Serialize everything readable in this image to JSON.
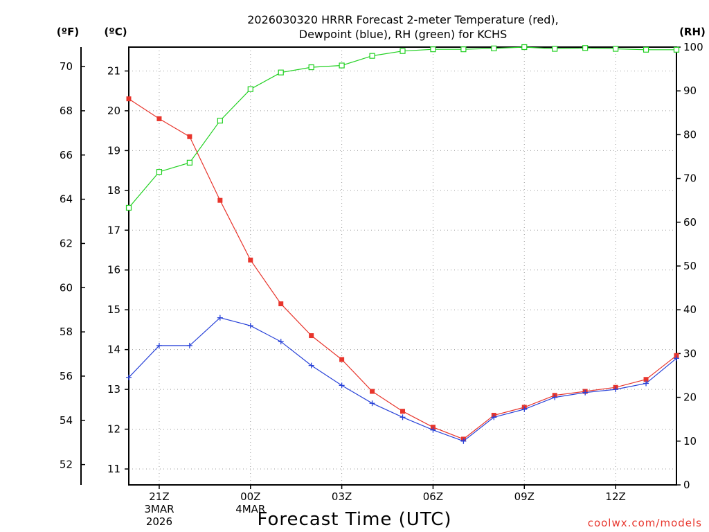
{
  "chart_data": {
    "type": "line",
    "title_line1": "2026030320 HRRR Forecast 2-meter Temperature (red),",
    "title_line2": "Dewpoint (blue), RH (green) for KCHS",
    "xlabel": "Forecast Time (UTC)",
    "credit": "coolwx.com/models",
    "unit_labels": {
      "fahrenheit": "(ºF)",
      "celsius": "(ºC)",
      "rh": "(RH)"
    },
    "x": [
      20,
      21,
      22,
      23,
      24,
      25,
      26,
      27,
      28,
      29,
      30,
      31,
      32,
      33,
      34,
      35,
      36,
      37,
      38
    ],
    "x_range": [
      20,
      38
    ],
    "x_ticks": [
      {
        "x": 21,
        "label": "21Z",
        "sub1": "3MAR",
        "sub2": "2026"
      },
      {
        "x": 24,
        "label": "00Z",
        "sub1": "4MAR",
        "sub2": ""
      },
      {
        "x": 27,
        "label": "03Z",
        "sub1": "",
        "sub2": ""
      },
      {
        "x": 30,
        "label": "06Z",
        "sub1": "",
        "sub2": ""
      },
      {
        "x": 33,
        "label": "09Z",
        "sub1": "",
        "sub2": ""
      },
      {
        "x": 36,
        "label": "12Z",
        "sub1": "",
        "sub2": ""
      }
    ],
    "celsius_axis": {
      "range": [
        10.6,
        21.6
      ],
      "ticks": [
        11,
        12,
        13,
        14,
        15,
        16,
        17,
        18,
        19,
        20,
        21
      ]
    },
    "fahrenheit_axis": {
      "ticks": [
        52,
        54,
        56,
        58,
        60,
        62,
        64,
        66,
        68,
        70
      ]
    },
    "rh_axis": {
      "range": [
        0,
        100
      ],
      "ticks": [
        0,
        10,
        20,
        30,
        40,
        50,
        60,
        70,
        80,
        90,
        100
      ]
    },
    "series": [
      {
        "name": "Temperature",
        "axis": "celsius",
        "color": "#e8352c",
        "marker": "filled-square",
        "values": [
          20.3,
          19.8,
          19.35,
          17.75,
          16.25,
          15.15,
          14.35,
          13.75,
          12.95,
          12.45,
          12.05,
          11.75,
          12.35,
          12.55,
          12.85,
          12.95,
          13.05,
          13.25,
          13.85
        ]
      },
      {
        "name": "Dewpoint",
        "axis": "celsius",
        "color": "#2741d8",
        "marker": "plus",
        "values": [
          13.3,
          14.1,
          14.1,
          14.8,
          14.6,
          14.2,
          13.6,
          13.1,
          12.65,
          12.3,
          11.98,
          11.7,
          12.3,
          12.5,
          12.8,
          12.92,
          13.0,
          13.15,
          13.78
        ]
      },
      {
        "name": "RH",
        "axis": "rh",
        "color": "#1fd01f",
        "marker": "open-square",
        "values": [
          63.3,
          71.5,
          73.6,
          83.2,
          90.4,
          94.2,
          95.4,
          95.8,
          98.0,
          99.1,
          99.5,
          99.5,
          99.7,
          100.0,
          99.6,
          99.8,
          99.6,
          99.4,
          99.4
        ]
      }
    ],
    "grid": true
  }
}
